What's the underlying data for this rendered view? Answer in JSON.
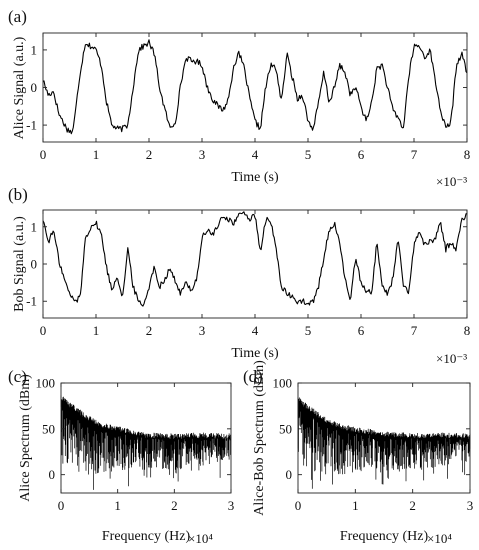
{
  "chart_data": [
    {
      "panel": "(a)",
      "type": "line",
      "xlabel": "Time (s)",
      "ylabel": "Alice Signal (a.u.)",
      "x_multiplier": "×10⁻³",
      "xlim": [
        0,
        8
      ],
      "ylim": [
        -1.45,
        1.45
      ],
      "xticks": [
        "0",
        "1",
        "2",
        "3",
        "4",
        "5",
        "6",
        "7",
        "8"
      ],
      "yticks": [
        "1",
        "0",
        "-1"
      ],
      "yticks_values": [
        1,
        0,
        -1
      ],
      "series": [
        {
          "x": [
            0,
            0.1,
            0.2,
            0.3,
            0.45,
            0.55,
            0.6,
            0.7,
            0.8,
            0.9,
            1.0,
            1.1,
            1.2,
            1.3,
            1.4,
            1.5,
            1.6,
            1.7,
            1.8,
            1.9,
            2.0,
            2.1,
            2.2,
            2.3,
            2.4,
            2.5,
            2.6,
            2.7,
            2.8,
            2.9,
            3.0,
            3.1,
            3.2,
            3.3,
            3.4,
            3.5,
            3.6,
            3.7,
            3.8,
            3.9,
            4.0,
            4.1,
            4.2,
            4.3,
            4.4,
            4.5,
            4.6,
            4.7,
            4.8,
            4.9,
            5.0,
            5.1,
            5.2,
            5.3,
            5.4,
            5.5,
            5.6,
            5.7,
            5.8,
            5.9,
            6.0,
            6.1,
            6.2,
            6.3,
            6.4,
            6.5,
            6.6,
            6.7,
            6.8,
            6.9,
            7.0,
            7.1,
            7.2,
            7.3,
            7.4,
            7.5,
            7.6,
            7.7,
            7.8,
            7.9,
            8.0
          ],
          "y": [
            0.2,
            -0.2,
            -0.1,
            -0.7,
            -1.1,
            -1.2,
            -0.8,
            0.4,
            1.2,
            1.1,
            1.0,
            0.6,
            -0.4,
            -1.0,
            -1.1,
            -1.1,
            -1.0,
            0.0,
            1.0,
            1.1,
            1.2,
            0.9,
            0.0,
            -0.6,
            -1.1,
            -0.9,
            0.1,
            0.8,
            0.7,
            0.7,
            0.6,
            0.0,
            -0.3,
            -0.5,
            -0.6,
            -0.3,
            0.6,
            0.9,
            0.5,
            -0.3,
            -0.9,
            -1.1,
            0.0,
            0.6,
            0.5,
            -0.4,
            0.9,
            0.3,
            -0.3,
            -0.2,
            -0.9,
            -1.1,
            -0.4,
            0.4,
            -0.4,
            0.0,
            0.6,
            0.4,
            -0.2,
            0.0,
            -0.5,
            -0.9,
            -0.4,
            0.5,
            0.6,
            0.0,
            -0.6,
            -0.8,
            -1.1,
            0.3,
            1.1,
            1.1,
            0.8,
            1.0,
            0.2,
            -0.6,
            -1.1,
            -0.9,
            0.6,
            0.9,
            0.4
          ]
        }
      ]
    },
    {
      "panel": "(b)",
      "type": "line",
      "xlabel": "Time (s)",
      "ylabel": "Bob Signal (a.u.)",
      "x_multiplier": "×10⁻³",
      "xlim": [
        0,
        8
      ],
      "ylim": [
        -1.45,
        1.45
      ],
      "xticks": [
        "0",
        "1",
        "2",
        "3",
        "4",
        "5",
        "6",
        "7",
        "8"
      ],
      "yticks": [
        "1",
        "0",
        "-1"
      ],
      "yticks_values": [
        1,
        0,
        -1
      ],
      "series": [
        {
          "x": [
            0,
            0.1,
            0.2,
            0.3,
            0.4,
            0.5,
            0.6,
            0.7,
            0.8,
            0.9,
            1.0,
            1.1,
            1.2,
            1.3,
            1.4,
            1.5,
            1.6,
            1.7,
            1.8,
            1.9,
            2.0,
            2.1,
            2.2,
            2.3,
            2.4,
            2.5,
            2.6,
            2.7,
            2.8,
            2.9,
            3.0,
            3.1,
            3.2,
            3.3,
            3.4,
            3.5,
            3.6,
            3.7,
            3.8,
            3.9,
            4.0,
            4.1,
            4.2,
            4.3,
            4.4,
            4.5,
            4.6,
            4.7,
            4.8,
            4.9,
            5.0,
            5.1,
            5.2,
            5.3,
            5.4,
            5.5,
            5.6,
            5.7,
            5.8,
            5.9,
            6.0,
            6.1,
            6.2,
            6.3,
            6.4,
            6.5,
            6.6,
            6.7,
            6.8,
            6.9,
            7.0,
            7.1,
            7.2,
            7.3,
            7.4,
            7.5,
            7.6,
            7.7,
            7.8,
            7.9,
            8.0
          ],
          "y": [
            1.2,
            0.6,
            0.9,
            0.1,
            -0.4,
            -0.8,
            -1.0,
            -0.9,
            0.7,
            1.0,
            1.1,
            0.8,
            -0.1,
            -0.7,
            -0.3,
            -0.9,
            0.4,
            -0.6,
            -1.0,
            -1.1,
            -0.6,
            -0.1,
            -0.6,
            -0.4,
            -0.1,
            -0.5,
            -0.8,
            -0.5,
            -0.7,
            -0.4,
            0.7,
            0.9,
            0.8,
            1.0,
            1.3,
            1.2,
            1.1,
            1.3,
            1.4,
            1.2,
            1.3,
            0.3,
            1.2,
            1.1,
            0.4,
            -0.6,
            -0.8,
            -0.9,
            -1.0,
            -1.0,
            -1.1,
            -1.0,
            -0.6,
            0.2,
            0.9,
            1.1,
            0.5,
            -0.4,
            -1.0,
            0.2,
            -0.5,
            -0.7,
            -0.8,
            0.6,
            -0.6,
            -0.8,
            -0.4,
            0.7,
            -0.6,
            -0.8,
            0.5,
            0.9,
            0.5,
            0.6,
            0.7,
            1.1,
            0.4,
            0.6,
            0.4,
            1.2,
            1.3
          ]
        }
      ]
    },
    {
      "panel": "(c)",
      "type": "line",
      "xlabel": "Frequency (Hz)",
      "ylabel": "Alice Spectrum (dBm)",
      "x_multiplier": "×10⁴",
      "xlim": [
        0,
        3
      ],
      "ylim": [
        -20,
        100
      ],
      "xticks": [
        "0",
        "1",
        "2",
        "3"
      ],
      "yticks": [
        "100",
        "50",
        "0"
      ],
      "yticks_values": [
        100,
        50,
        0
      ],
      "series": [
        {
          "x": [
            0,
            0.1,
            0.25,
            0.5,
            0.75,
            1.0,
            1.25,
            1.5,
            2.0,
            2.5,
            3.0
          ],
          "y_upper": [
            88,
            82,
            75,
            64,
            57,
            53,
            50,
            46,
            45,
            46,
            45
          ],
          "y_lower": [
            30,
            10,
            0,
            0,
            0,
            5,
            5,
            5,
            5,
            10,
            15
          ]
        }
      ]
    },
    {
      "panel": "(d)",
      "type": "line",
      "xlabel": "Frequency (Hz)",
      "ylabel": "Alice-Bob Spectrum (dBm)",
      "x_multiplier": "×10⁴",
      "xlim": [
        0,
        3
      ],
      "ylim": [
        -20,
        100
      ],
      "xticks": [
        "0",
        "1",
        "2",
        "3"
      ],
      "yticks": [
        "100",
        "50",
        "0"
      ],
      "yticks_values": [
        100,
        50,
        0
      ],
      "series": [
        {
          "x": [
            0,
            0.1,
            0.25,
            0.5,
            0.75,
            1.0,
            1.25,
            1.5,
            2.0,
            2.5,
            3.0
          ],
          "y_upper": [
            86,
            80,
            73,
            62,
            56,
            52,
            50,
            47,
            46,
            46,
            45
          ],
          "y_lower": [
            25,
            8,
            0,
            0,
            0,
            2,
            5,
            5,
            5,
            8,
            12
          ]
        }
      ]
    }
  ]
}
